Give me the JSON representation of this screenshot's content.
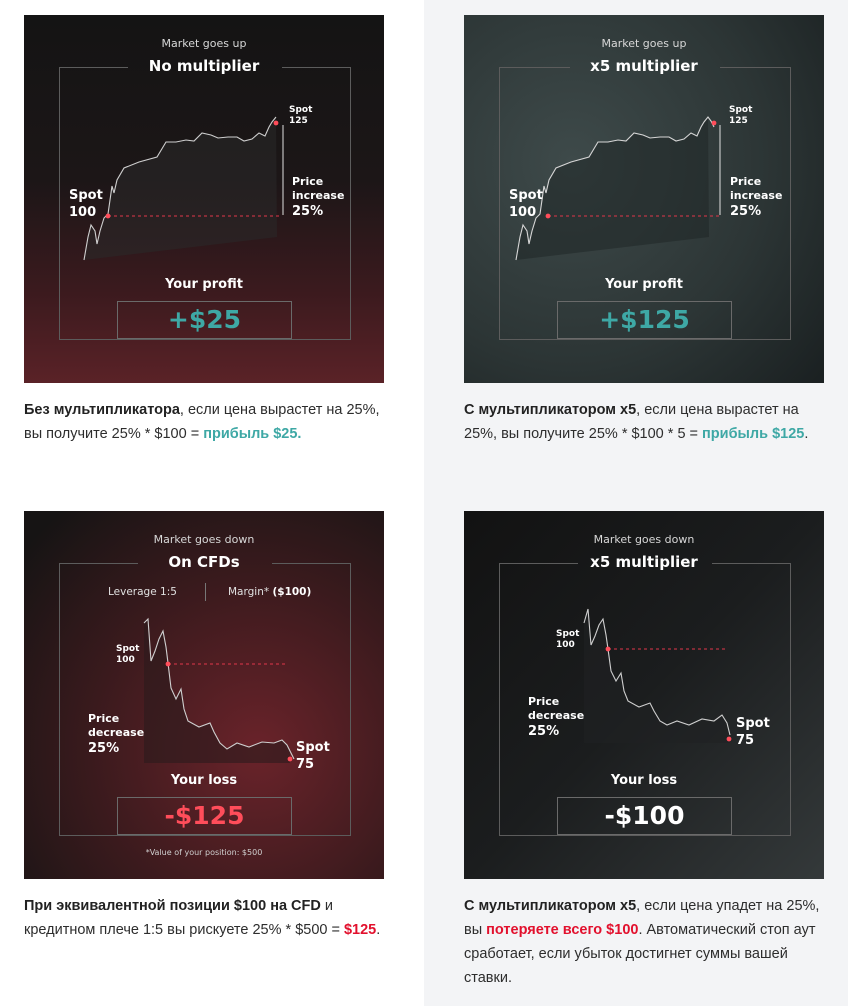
{
  "colors": {
    "teal": "#3ea8a5",
    "red": "#e2102d",
    "loss_red": "#ff4d5a"
  },
  "cards": [
    {
      "subtitle": "Market goes up",
      "title": "No multiplier",
      "spot_start_label": "Spot",
      "spot_start_value": "100",
      "spot_end_label": "Spot",
      "spot_end_value": "125",
      "change_label": "Price",
      "change_label2": "increase",
      "change_value": "25%",
      "result_label": "Your profit",
      "result_value": "+$25"
    },
    {
      "subtitle": "Market goes up",
      "title": "x5 multiplier",
      "spot_start_label": "Spot",
      "spot_start_value": "100",
      "spot_end_label": "Spot",
      "spot_end_value": "125",
      "change_label": "Price",
      "change_label2": "increase",
      "change_value": "25%",
      "result_label": "Your profit",
      "result_value": "+$125"
    },
    {
      "subtitle": "Market goes down",
      "title": "On CFDs",
      "leverage": "Leverage  1:5",
      "margin": "Margin*",
      "margin_value": "($100)",
      "spot_start_label": "Spot",
      "spot_start_value": "100",
      "spot_end_label": "Spot",
      "spot_end_value": "75",
      "change_label": "Price",
      "change_label2": "decrease",
      "change_value": "25%",
      "result_label": "Your loss",
      "result_value": "-$125",
      "footnote": "*Value of your position: $500"
    },
    {
      "subtitle": "Market goes down",
      "title": "x5 multiplier",
      "spot_start_label": "Spot",
      "spot_start_value": "100",
      "spot_end_label": "Spot",
      "spot_end_value": "75",
      "change_label": "Price",
      "change_label2": "decrease",
      "change_value": "25%",
      "result_label": "Your loss",
      "result_value": "-$100"
    }
  ],
  "captions": [
    {
      "b1": "Без мультипликатора",
      "t1": ", если цена вырастет на 25%, вы получите 25% * $100 = ",
      "hl": "прибыль $25.",
      "t2": ""
    },
    {
      "b1": "С мультипликатором x5",
      "t1": ", если цена вырастет на 25%, вы получите 25% * $100 * 5 = ",
      "hl": "прибыль $125",
      "t2": "."
    },
    {
      "b1": "При эквивалентной позиции $100 на CFD",
      "t1": " и кредитном плече 1:5 вы рискуете 25% * $500 = ",
      "hl": "$125",
      "t2": "."
    },
    {
      "b1": "С мультипликатором x5",
      "t1": ", если цена упадет на 25%, вы ",
      "hl": "потеряете всего $100",
      "t2": ". Автоматический стоп аут сработает, если убыток достигнет суммы вашей ставки."
    }
  ]
}
